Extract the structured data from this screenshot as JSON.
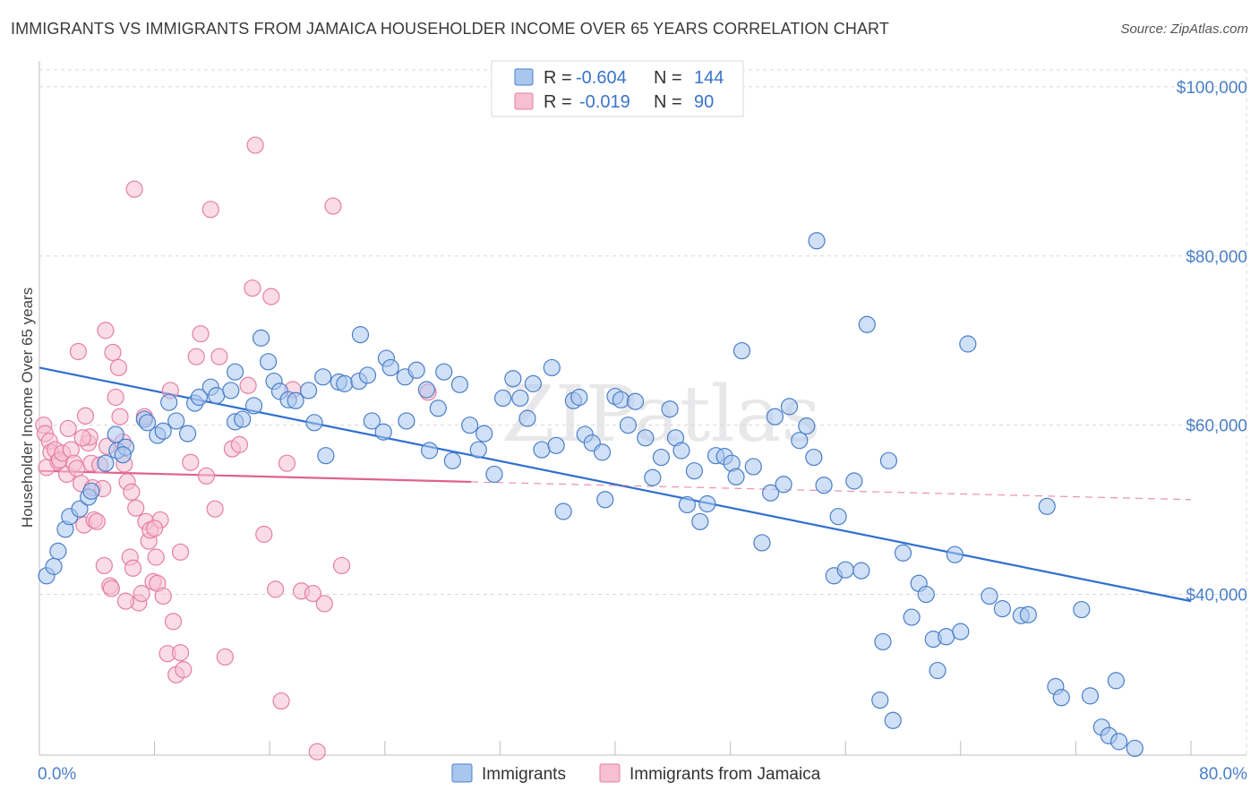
{
  "title": "IMMIGRANTS VS IMMIGRANTS FROM JAMAICA HOUSEHOLDER INCOME OVER 65 YEARS CORRELATION CHART",
  "source": "Source: ZipAtlas.com",
  "watermark": "ZIPatlas",
  "colors": {
    "blue": "#4a7fc8",
    "blue_fill": "#a9c6ee",
    "blue_line": "#2f6fcf",
    "pink": "#e57fa3",
    "pink_fill": "#f6bfd2",
    "pink_line": "#e0628f",
    "grid": "#d8d8d8"
  },
  "legend": {
    "rows": [
      {
        "series": "Immigrants",
        "r_label": "R =",
        "r_value": "-0.604",
        "n_label": "N =",
        "n_value": "144"
      },
      {
        "series": "Immigrants from Jamaica",
        "r_label": "R =",
        "r_value": "-0.019",
        "n_label": "N =",
        "n_value": "90"
      }
    ]
  },
  "chart_data": {
    "type": "scatter",
    "title": "IMMIGRANTS VS IMMIGRANTS FROM JAMAICA HOUSEHOLDER INCOME OVER 65 YEARS CORRELATION CHART",
    "xlabel": "",
    "ylabel": "Householder Income Over 65 years",
    "xlim": [
      0,
      80
    ],
    "ylim": [
      21000,
      102000
    ],
    "x_tick_labels": [
      "0.0%",
      "80.0%"
    ],
    "y_ticks": [
      40000,
      60000,
      80000,
      100000
    ],
    "y_tick_labels": [
      "$40,000",
      "$60,000",
      "$80,000",
      "$100,000"
    ],
    "grid": true,
    "legend_position": "top-center",
    "series": [
      {
        "name": "Immigrants",
        "r": -0.604,
        "n": 144,
        "trend": {
          "x": [
            0,
            80
          ],
          "y": [
            66800,
            39200
          ],
          "style": "solid"
        },
        "points": [
          [
            0.5,
            42200
          ],
          [
            1.0,
            43300
          ],
          [
            1.3,
            45100
          ],
          [
            1.8,
            47700
          ],
          [
            2.1,
            49200
          ],
          [
            2.8,
            50100
          ],
          [
            3.4,
            51500
          ],
          [
            3.6,
            52200
          ],
          [
            4.6,
            55500
          ],
          [
            5.4,
            57000
          ],
          [
            6.0,
            57400
          ],
          [
            5.3,
            58900
          ],
          [
            5.8,
            56500
          ],
          [
            7.3,
            60700
          ],
          [
            7.5,
            60300
          ],
          [
            8.2,
            58800
          ],
          [
            8.6,
            59300
          ],
          [
            9.0,
            62700
          ],
          [
            9.5,
            60500
          ],
          [
            10.3,
            59000
          ],
          [
            10.8,
            62600
          ],
          [
            11.1,
            63300
          ],
          [
            11.9,
            64500
          ],
          [
            12.3,
            63500
          ],
          [
            13.3,
            64100
          ],
          [
            13.6,
            66300
          ],
          [
            13.6,
            60400
          ],
          [
            14.1,
            60700
          ],
          [
            14.9,
            62300
          ],
          [
            15.4,
            70300
          ],
          [
            15.9,
            67500
          ],
          [
            16.3,
            65200
          ],
          [
            16.7,
            64000
          ],
          [
            17.3,
            63000
          ],
          [
            17.8,
            62900
          ],
          [
            18.7,
            64100
          ],
          [
            19.1,
            60300
          ],
          [
            19.7,
            65700
          ],
          [
            19.9,
            56400
          ],
          [
            20.8,
            65100
          ],
          [
            21.2,
            64900
          ],
          [
            22.2,
            65200
          ],
          [
            22.3,
            70700
          ],
          [
            22.8,
            65900
          ],
          [
            23.1,
            60500
          ],
          [
            23.9,
            59200
          ],
          [
            24.1,
            67900
          ],
          [
            24.4,
            66800
          ],
          [
            25.4,
            65700
          ],
          [
            25.5,
            60500
          ],
          [
            26.2,
            66500
          ],
          [
            26.9,
            64200
          ],
          [
            27.1,
            57000
          ],
          [
            27.7,
            62000
          ],
          [
            28.1,
            66300
          ],
          [
            28.7,
            55800
          ],
          [
            29.2,
            64800
          ],
          [
            29.9,
            60000
          ],
          [
            30.5,
            57100
          ],
          [
            30.9,
            59000
          ],
          [
            31.6,
            54200
          ],
          [
            32.2,
            63200
          ],
          [
            32.9,
            65500
          ],
          [
            33.4,
            63200
          ],
          [
            33.9,
            60800
          ],
          [
            34.3,
            64900
          ],
          [
            34.9,
            57100
          ],
          [
            35.6,
            66800
          ],
          [
            35.9,
            57600
          ],
          [
            36.4,
            49800
          ],
          [
            37.1,
            62900
          ],
          [
            37.5,
            63300
          ],
          [
            37.9,
            58900
          ],
          [
            38.4,
            57900
          ],
          [
            39.1,
            56800
          ],
          [
            39.3,
            51200
          ],
          [
            40.0,
            63400
          ],
          [
            40.4,
            63000
          ],
          [
            40.9,
            60000
          ],
          [
            41.4,
            62800
          ],
          [
            42.1,
            58500
          ],
          [
            42.6,
            53800
          ],
          [
            43.2,
            56200
          ],
          [
            43.8,
            61900
          ],
          [
            44.2,
            58500
          ],
          [
            44.6,
            57000
          ],
          [
            45.0,
            50600
          ],
          [
            45.5,
            54600
          ],
          [
            45.9,
            48600
          ],
          [
            46.4,
            50700
          ],
          [
            47.0,
            56400
          ],
          [
            47.6,
            56300
          ],
          [
            48.1,
            55500
          ],
          [
            48.4,
            53900
          ],
          [
            48.8,
            68800
          ],
          [
            49.6,
            55100
          ],
          [
            50.2,
            46100
          ],
          [
            50.8,
            52000
          ],
          [
            51.1,
            61000
          ],
          [
            51.7,
            53000
          ],
          [
            52.1,
            62200
          ],
          [
            52.8,
            58200
          ],
          [
            53.3,
            59900
          ],
          [
            53.8,
            56200
          ],
          [
            54.0,
            81800
          ],
          [
            54.5,
            52900
          ],
          [
            55.2,
            42200
          ],
          [
            55.5,
            49200
          ],
          [
            56.0,
            42900
          ],
          [
            56.6,
            53400
          ],
          [
            57.1,
            42800
          ],
          [
            57.5,
            71900
          ],
          [
            58.6,
            34400
          ],
          [
            59.0,
            55800
          ],
          [
            58.4,
            27500
          ],
          [
            59.3,
            25100
          ],
          [
            60.0,
            44900
          ],
          [
            60.6,
            37300
          ],
          [
            61.1,
            41300
          ],
          [
            61.6,
            40000
          ],
          [
            62.1,
            34700
          ],
          [
            62.4,
            31000
          ],
          [
            63.0,
            35000
          ],
          [
            63.6,
            44700
          ],
          [
            64.0,
            35600
          ],
          [
            64.5,
            69600
          ],
          [
            66.0,
            39800
          ],
          [
            66.9,
            38300
          ],
          [
            68.2,
            37500
          ],
          [
            68.7,
            37600
          ],
          [
            70.0,
            50400
          ],
          [
            70.6,
            29100
          ],
          [
            71.0,
            27800
          ],
          [
            72.4,
            38200
          ],
          [
            73.0,
            28000
          ],
          [
            73.8,
            24300
          ],
          [
            74.3,
            23300
          ],
          [
            74.8,
            29800
          ],
          [
            75.0,
            22600
          ],
          [
            76.1,
            21800
          ]
        ]
      },
      {
        "name": "Immigrants from Jamaica",
        "r": -0.019,
        "n": 90,
        "trend": {
          "x": [
            0,
            30
          ],
          "y": [
            54600,
            53300
          ],
          "style": "solid",
          "dashed_extension_to": [
            80,
            51200
          ]
        },
        "points": [
          [
            0.3,
            60000
          ],
          [
            0.4,
            59000
          ],
          [
            0.5,
            55000
          ],
          [
            0.7,
            58100
          ],
          [
            0.8,
            56800
          ],
          [
            1.1,
            57100
          ],
          [
            1.3,
            55700
          ],
          [
            1.4,
            55900
          ],
          [
            1.6,
            56700
          ],
          [
            1.9,
            54200
          ],
          [
            2.0,
            59600
          ],
          [
            2.2,
            57100
          ],
          [
            2.4,
            55500
          ],
          [
            2.6,
            54900
          ],
          [
            2.7,
            68700
          ],
          [
            2.9,
            53100
          ],
          [
            3.1,
            48200
          ],
          [
            3.2,
            61100
          ],
          [
            3.4,
            57900
          ],
          [
            3.5,
            58600
          ],
          [
            3.6,
            55500
          ],
          [
            3.7,
            52600
          ],
          [
            3.8,
            48800
          ],
          [
            4.0,
            48600
          ],
          [
            4.2,
            55300
          ],
          [
            4.4,
            52500
          ],
          [
            4.6,
            71200
          ],
          [
            4.7,
            57500
          ],
          [
            4.9,
            41000
          ],
          [
            5.0,
            40700
          ],
          [
            5.1,
            68600
          ],
          [
            5.3,
            63300
          ],
          [
            5.5,
            66800
          ],
          [
            5.6,
            61000
          ],
          [
            5.8,
            58000
          ],
          [
            5.9,
            55400
          ],
          [
            6.1,
            53300
          ],
          [
            6.3,
            44400
          ],
          [
            6.4,
            52100
          ],
          [
            6.5,
            43100
          ],
          [
            6.6,
            87900
          ],
          [
            6.7,
            50200
          ],
          [
            6.9,
            39000
          ],
          [
            7.1,
            40100
          ],
          [
            7.3,
            61000
          ],
          [
            7.4,
            48600
          ],
          [
            7.6,
            46300
          ],
          [
            7.7,
            47600
          ],
          [
            7.9,
            41500
          ],
          [
            8.1,
            44400
          ],
          [
            8.2,
            41300
          ],
          [
            8.4,
            48800
          ],
          [
            8.6,
            39800
          ],
          [
            8.9,
            33000
          ],
          [
            9.1,
            64100
          ],
          [
            9.3,
            36800
          ],
          [
            9.5,
            30500
          ],
          [
            9.8,
            45000
          ],
          [
            10.0,
            31100
          ],
          [
            10.5,
            55600
          ],
          [
            10.9,
            68100
          ],
          [
            11.2,
            70800
          ],
          [
            11.6,
            54000
          ],
          [
            11.9,
            85500
          ],
          [
            12.2,
            50100
          ],
          [
            12.5,
            68100
          ],
          [
            12.9,
            32600
          ],
          [
            13.4,
            57200
          ],
          [
            13.9,
            57700
          ],
          [
            14.5,
            64700
          ],
          [
            14.8,
            76200
          ],
          [
            15.0,
            93100
          ],
          [
            15.6,
            47100
          ],
          [
            16.1,
            75200
          ],
          [
            16.4,
            40600
          ],
          [
            16.8,
            27400
          ],
          [
            17.2,
            55500
          ],
          [
            17.6,
            64200
          ],
          [
            18.2,
            40400
          ],
          [
            19.0,
            40100
          ],
          [
            19.3,
            21400
          ],
          [
            19.8,
            38900
          ],
          [
            20.4,
            85900
          ],
          [
            21.0,
            43400
          ],
          [
            27.0,
            63900
          ],
          [
            8.0,
            47800
          ],
          [
            3.0,
            58500
          ],
          [
            4.5,
            43400
          ],
          [
            9.8,
            33100
          ],
          [
            6.0,
            39200
          ]
        ]
      }
    ]
  }
}
